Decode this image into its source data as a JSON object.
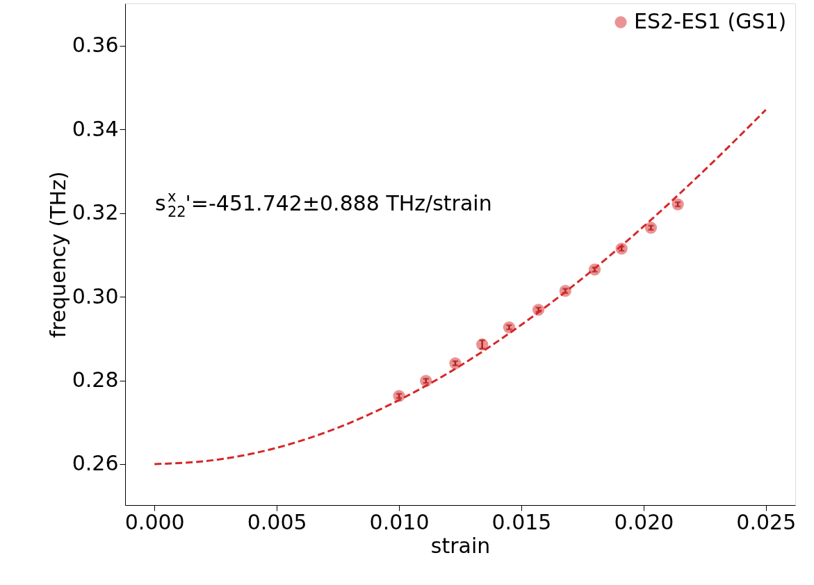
{
  "chart_data": {
    "type": "scatter",
    "xlabel": "strain",
    "ylabel": "frequency (THz)",
    "xlim": [
      -0.0012,
      0.0262
    ],
    "ylim": [
      0.2502,
      0.3701
    ],
    "xticks": [
      {
        "value": 0,
        "label": "0.000"
      },
      {
        "value": 0.005,
        "label": "0.005"
      },
      {
        "value": 0.01,
        "label": "0.010"
      },
      {
        "value": 0.015,
        "label": "0.015"
      },
      {
        "value": 0.02,
        "label": "0.020"
      },
      {
        "value": 0.025,
        "label": "0.025"
      }
    ],
    "yticks": [
      0.26,
      0.28,
      {
        "value": 0.3,
        "label": "0.30"
      },
      0.32,
      0.34,
      0.36
    ],
    "grid": false,
    "legend": "top right",
    "annotations": [
      "s$^{x}$$_{22}$'=-451.742±0.888 THz/strain"
    ],
    "series": [
      {
        "name": "ES2-ES1 (GS1)",
        "marker": "circle",
        "color": "#eb9394",
        "x": [
          0.01,
          0.0111,
          0.0123,
          0.0134,
          0.0145,
          0.0157,
          0.0168,
          0.018,
          0.0191,
          0.0203,
          0.0214
        ],
        "values": [
          0.2763,
          0.2799,
          0.2841,
          0.2886,
          0.2927,
          0.2969,
          0.3014,
          0.3065,
          0.3115,
          0.3165,
          0.3221
        ],
        "errors": [
          0.0005,
          0.0005,
          0.0005,
          0.001,
          0.0005,
          0.0005,
          0.0005,
          0.0005,
          0.0005,
          0.0005,
          0.0005
        ]
      },
      {
        "type": "line",
        "color": "#d62728",
        "line_style": "dashed",
        "x": [
          0,
          0.0025,
          0.005,
          0.0075,
          0.01,
          0.0125,
          0.015,
          0.0175,
          0.02,
          0.0225,
          0.025
        ],
        "values": [
          0.26,
          0.261,
          0.2639,
          0.2687,
          0.2753,
          0.2835,
          0.2933,
          0.3044,
          0.3168,
          0.3303,
          0.3447
        ]
      }
    ]
  }
}
